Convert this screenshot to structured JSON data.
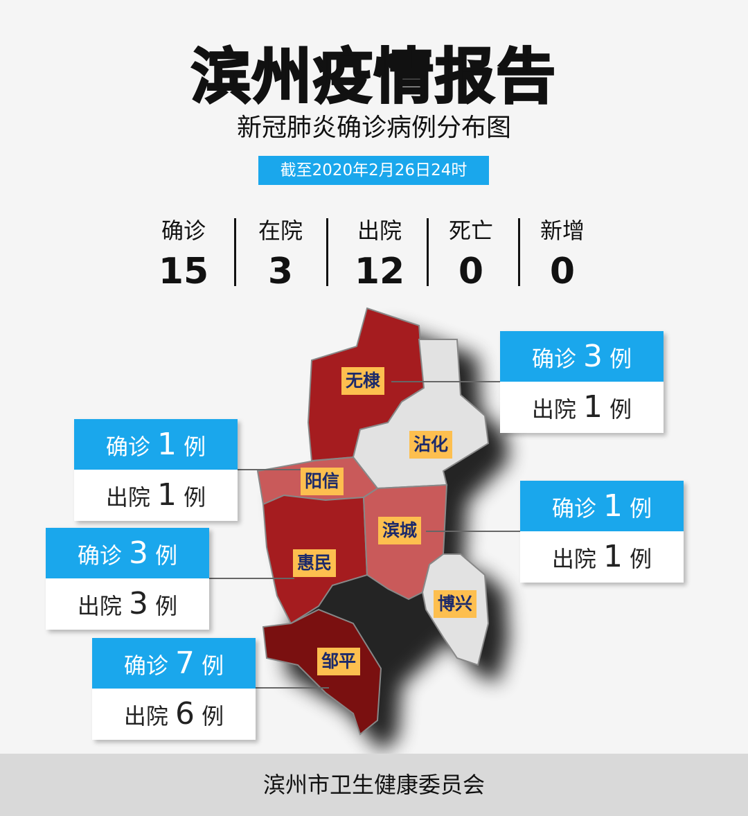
{
  "header": {
    "title": "滨州疫情报告",
    "subtitle": "新冠肺炎确诊病例分布图",
    "date": "截至2020年2月26日24时"
  },
  "stats": [
    {
      "label": "确诊",
      "value": "15"
    },
    {
      "label": "在院",
      "value": "3"
    },
    {
      "label": "出院",
      "value": "12"
    },
    {
      "label": "死亡",
      "value": "0"
    },
    {
      "label": "新增",
      "value": "0"
    }
  ],
  "colors": {
    "accent": "#1aa7ec",
    "label_bg": "#fdbf4f",
    "confirmed_1": "#c95a5a",
    "confirmed_3": "#a51c1f",
    "confirmed_7": "#7a1010",
    "no_cases": "#e2e2e2"
  },
  "regions": [
    {
      "name": "无棣",
      "confirmed": "3",
      "discharged": "1"
    },
    {
      "name": "沾化"
    },
    {
      "name": "阳信",
      "confirmed": "1",
      "discharged": "1"
    },
    {
      "name": "滨城",
      "confirmed": "1",
      "discharged": "1"
    },
    {
      "name": "惠民",
      "confirmed": "3",
      "discharged": "3"
    },
    {
      "name": "博兴"
    },
    {
      "name": "邹平",
      "confirmed": "7",
      "discharged": "6"
    }
  ],
  "callout_text": {
    "confirmed": "确诊",
    "discharged": "出院",
    "unit": "例"
  },
  "footer": "滨州市卫生健康委员会"
}
